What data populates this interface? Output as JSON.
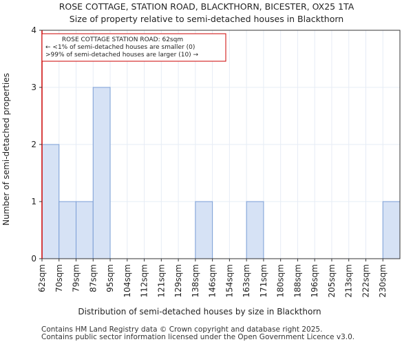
{
  "title_line1": "ROSE COTTAGE, STATION ROAD, BLACKTHORN, BICESTER, OX25 1TA",
  "title_line2": "Size of property relative to semi-detached houses in Blackthorn",
  "footer_line1": "Contains HM Land Registry data © Crown copyright and database right 2025.",
  "footer_line2": "Contains public sector information licensed under the Open Government Licence v3.0.",
  "colors": {
    "bar_fill": "#d6e2f5",
    "bar_stroke": "#7a9ed6",
    "marker": "#cc0000",
    "grid": "#e6ecf5"
  },
  "chart_data": {
    "type": "bar",
    "categories": [
      "62sqm",
      "70sqm",
      "79sqm",
      "87sqm",
      "95sqm",
      "104sqm",
      "112sqm",
      "121sqm",
      "129sqm",
      "138sqm",
      "146sqm",
      "154sqm",
      "163sqm",
      "171sqm",
      "180sqm",
      "188sqm",
      "196sqm",
      "205sqm",
      "213sqm",
      "222sqm",
      "230sqm"
    ],
    "values": [
      2,
      1,
      1,
      3,
      0,
      0,
      0,
      0,
      0,
      1,
      0,
      0,
      1,
      0,
      0,
      0,
      0,
      0,
      0,
      0,
      1
    ],
    "xlabel": "Distribution of semi-detached houses by size in Blackthorn",
    "ylabel": "Number of semi-detached properties",
    "ylim": [
      0,
      4
    ],
    "yticks": [
      0,
      1,
      2,
      3,
      4
    ],
    "grid": true,
    "marker_x": "62sqm",
    "annotation": {
      "line1": "ROSE COTTAGE STATION ROAD: 62sqm",
      "line2": "← <1% of semi-detached houses are smaller (0)",
      "line3": ">99% of semi-detached houses are larger (10) →"
    }
  }
}
